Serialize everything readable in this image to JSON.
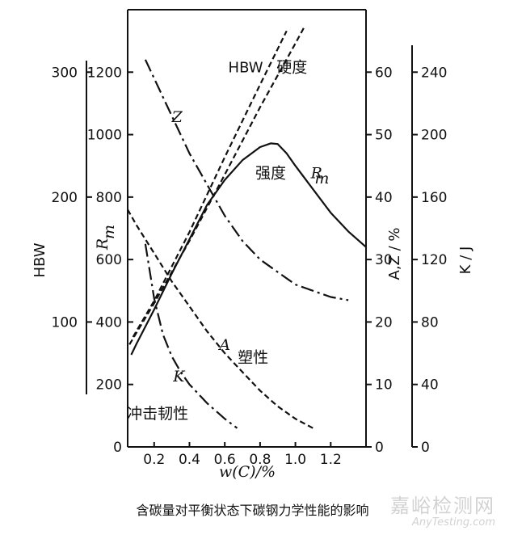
{
  "watermark": {
    "text_cn": "嘉峪检测网",
    "text_en": "AnyTesting.com"
  },
  "chart_data": {
    "type": "line",
    "title": "含碳量对平衡状态下碳钢力学性能的影响",
    "xlabel": "w(C)/%",
    "xlim": [
      0.05,
      1.4
    ],
    "x_ticks": [
      "0.2",
      "0.4",
      "0.6",
      "0.8",
      "1.0",
      "1.2"
    ],
    "x_tick_values": [
      0.2,
      0.4,
      0.6,
      0.8,
      1.0,
      1.2
    ],
    "grid": false,
    "axes": {
      "hbw": {
        "label": "HBW",
        "ylim": [
          0,
          350
        ],
        "ticks": [
          "100",
          "200",
          "300"
        ],
        "tick_values": [
          100,
          200,
          300
        ]
      },
      "rm": {
        "label_main": "R",
        "label_sub": "m",
        "ylim": [
          0,
          1400
        ],
        "ticks": [
          "0",
          "200",
          "400",
          "600",
          "800",
          "1000",
          "1200"
        ],
        "tick_values": [
          0,
          200,
          400,
          600,
          800,
          1000,
          1200
        ]
      },
      "az": {
        "label": "A,Z / %",
        "ylim": [
          0,
          70
        ],
        "ticks": [
          "0",
          "10",
          "20",
          "30",
          "40",
          "50",
          "60"
        ],
        "tick_values": [
          0,
          10,
          20,
          30,
          40,
          50,
          60
        ]
      },
      "k": {
        "label": "K / J",
        "ylim": [
          0,
          280
        ],
        "ticks": [
          "0",
          "40",
          "80",
          "120",
          "160",
          "200",
          "240"
        ],
        "tick_values": [
          0,
          40,
          80,
          120,
          160,
          200,
          240
        ]
      }
    },
    "series": [
      {
        "key": "rm",
        "axis": "rm",
        "style": "solid",
        "color": "#111111",
        "x": [
          0.07,
          0.1,
          0.2,
          0.3,
          0.4,
          0.5,
          0.6,
          0.7,
          0.8,
          0.86,
          0.9,
          0.95,
          1.0,
          1.1,
          1.2,
          1.3,
          1.4
        ],
        "values": [
          295,
          330,
          440,
          555,
          665,
          775,
          855,
          918,
          960,
          972,
          970,
          940,
          900,
          825,
          750,
          690,
          640
        ]
      },
      {
        "key": "hbw",
        "axis": "hbw",
        "style": "dashed",
        "color": "#111111",
        "x": [
          0.06,
          0.2,
          0.4,
          0.6,
          0.8,
          1.0,
          1.05
        ],
        "values": [
          82,
          115,
          165,
          218,
          272,
          323,
          336
        ]
      },
      {
        "key": "hbw_pair",
        "axis": "hbw",
        "style": "dashed",
        "color": "#111111",
        "x": [
          0.08,
          0.2,
          0.4,
          0.6,
          0.8,
          0.95
        ],
        "values": [
          88,
          117,
          172,
          232,
          290,
          333
        ]
      },
      {
        "key": "z",
        "axis": "az",
        "style": "dashdot",
        "color": "#111111",
        "x": [
          0.15,
          0.2,
          0.3,
          0.4,
          0.5,
          0.6,
          0.7,
          0.8,
          0.9,
          1.0,
          1.1,
          1.2,
          1.3
        ],
        "values": [
          62,
          59,
          53,
          47,
          42,
          37,
          33,
          30,
          28,
          26,
          25,
          24,
          23.5
        ]
      },
      {
        "key": "a",
        "axis": "az",
        "style": "dashed",
        "color": "#111111",
        "x": [
          0.05,
          0.1,
          0.2,
          0.3,
          0.4,
          0.5,
          0.6,
          0.7,
          0.8,
          0.9,
          1.0,
          1.1
        ],
        "values": [
          38,
          35.5,
          31,
          26.5,
          22.5,
          18.5,
          15,
          12,
          9,
          6.5,
          4.5,
          3
        ]
      },
      {
        "key": "k",
        "axis": "k",
        "style": "dashdot",
        "color": "#111111",
        "x": [
          0.15,
          0.2,
          0.25,
          0.3,
          0.35,
          0.4,
          0.5,
          0.6,
          0.67
        ],
        "values": [
          130,
          95,
          72,
          58,
          48,
          40,
          28,
          18,
          12
        ]
      }
    ],
    "annotations": [
      {
        "key": "hbw_label",
        "text": "HBW",
        "x": 0.62,
        "axis": "az",
        "y": 60
      },
      {
        "key": "hardness_label",
        "text": "硬度",
        "x": 0.98,
        "axis": "az",
        "y": 60
      },
      {
        "key": "z_label",
        "text": "Z",
        "x": 0.33,
        "axis": "az",
        "y": 52
      },
      {
        "key": "strength_label",
        "text": "强度",
        "x": 0.86,
        "axis": "az",
        "y": 43
      },
      {
        "key": "rm_main",
        "text": "R",
        "x": 1.12,
        "axis": "az",
        "y": 43
      },
      {
        "key": "rm_sub",
        "text": "m",
        "x": 1.15,
        "axis": "az",
        "y": 42.2
      },
      {
        "key": "a_label",
        "text": "A",
        "x": 0.6,
        "axis": "az",
        "y": 15.5
      },
      {
        "key": "plasticity_label",
        "text": "塑性",
        "x": 0.76,
        "axis": "az",
        "y": 13.5
      },
      {
        "key": "k_label",
        "text": "K",
        "x": 0.34,
        "axis": "az",
        "y": 10.5
      },
      {
        "key": "impact_label",
        "text": "冲击韧性",
        "x": 0.22,
        "axis": "az",
        "y": 4.5
      }
    ]
  }
}
